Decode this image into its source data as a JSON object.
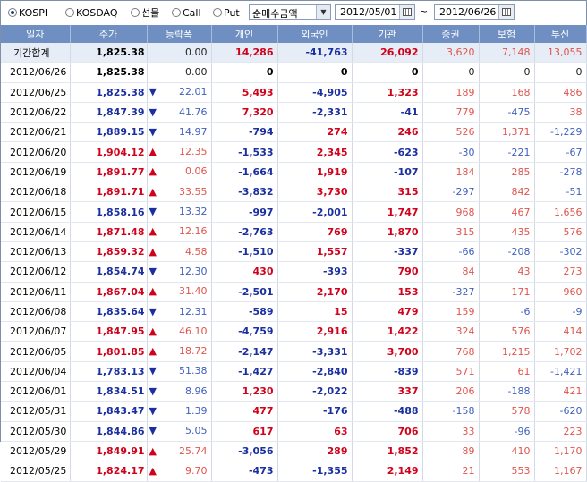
{
  "toolbar": {
    "radios": [
      {
        "label": "KOSPI",
        "checked": true
      },
      {
        "label": "KOSDAQ",
        "checked": false
      },
      {
        "label": "선물",
        "checked": false
      },
      {
        "label": "Call",
        "checked": false
      },
      {
        "label": "Put",
        "checked": false
      }
    ],
    "select_value": "순매수금액",
    "date_from": "2012/05/01",
    "date_sep": "~",
    "date_to": "2012/06/26"
  },
  "colors": {
    "header_bg": "#6f8ec2",
    "up": "#d0021b",
    "down": "#1a2fa0",
    "sum_bg": "#e6edf7"
  },
  "table": {
    "headers": [
      "일자",
      "주가",
      "등락폭",
      "개인",
      "외국인",
      "기관",
      "증권",
      "보험",
      "투신"
    ],
    "rows": [
      {
        "date": "기간합계",
        "price": "1,825.38",
        "dir": "",
        "change": "0.00",
        "ind": "14,286",
        "frn": "-41,763",
        "inst": "26,092",
        "sec": "3,620",
        "ins": "7,148",
        "trust": "13,055",
        "sum": true
      },
      {
        "date": "2012/06/26",
        "price": "1,825.38",
        "dir": "",
        "change": "0.00",
        "ind": "0",
        "frn": "0",
        "inst": "0",
        "sec": "0",
        "ins": "0",
        "trust": "0"
      },
      {
        "date": "2012/06/25",
        "price": "1,825.38",
        "dir": "down",
        "change": "22.01",
        "ind": "5,493",
        "frn": "-4,905",
        "inst": "1,323",
        "sec": "189",
        "ins": "168",
        "trust": "486"
      },
      {
        "date": "2012/06/22",
        "price": "1,847.39",
        "dir": "down",
        "change": "41.76",
        "ind": "7,320",
        "frn": "-2,331",
        "inst": "-41",
        "sec": "779",
        "ins": "-475",
        "trust": "38"
      },
      {
        "date": "2012/06/21",
        "price": "1,889.15",
        "dir": "down",
        "change": "14.97",
        "ind": "-794",
        "frn": "274",
        "inst": "246",
        "sec": "526",
        "ins": "1,371",
        "trust": "-1,229"
      },
      {
        "date": "2012/06/20",
        "price": "1,904.12",
        "dir": "up",
        "change": "12.35",
        "ind": "-1,533",
        "frn": "2,345",
        "inst": "-623",
        "sec": "-30",
        "ins": "-221",
        "trust": "-67"
      },
      {
        "date": "2012/06/19",
        "price": "1,891.77",
        "dir": "up",
        "change": "0.06",
        "ind": "-1,664",
        "frn": "1,919",
        "inst": "-107",
        "sec": "184",
        "ins": "285",
        "trust": "-278"
      },
      {
        "date": "2012/06/18",
        "price": "1,891.71",
        "dir": "up",
        "change": "33.55",
        "ind": "-3,832",
        "frn": "3,730",
        "inst": "315",
        "sec": "-297",
        "ins": "842",
        "trust": "-51"
      },
      {
        "date": "2012/06/15",
        "price": "1,858.16",
        "dir": "down",
        "change": "13.32",
        "ind": "-997",
        "frn": "-2,001",
        "inst": "1,747",
        "sec": "968",
        "ins": "467",
        "trust": "1,656"
      },
      {
        "date": "2012/06/14",
        "price": "1,871.48",
        "dir": "up",
        "change": "12.16",
        "ind": "-2,763",
        "frn": "769",
        "inst": "1,870",
        "sec": "315",
        "ins": "435",
        "trust": "576"
      },
      {
        "date": "2012/06/13",
        "price": "1,859.32",
        "dir": "up",
        "change": "4.58",
        "ind": "-1,510",
        "frn": "1,557",
        "inst": "-337",
        "sec": "-66",
        "ins": "-208",
        "trust": "-302"
      },
      {
        "date": "2012/06/12",
        "price": "1,854.74",
        "dir": "down",
        "change": "12.30",
        "ind": "430",
        "frn": "-393",
        "inst": "790",
        "sec": "84",
        "ins": "43",
        "trust": "273"
      },
      {
        "date": "2012/06/11",
        "price": "1,867.04",
        "dir": "up",
        "change": "31.40",
        "ind": "-2,501",
        "frn": "2,170",
        "inst": "153",
        "sec": "-327",
        "ins": "171",
        "trust": "960"
      },
      {
        "date": "2012/06/08",
        "price": "1,835.64",
        "dir": "down",
        "change": "12.31",
        "ind": "-589",
        "frn": "15",
        "inst": "479",
        "sec": "159",
        "ins": "-6",
        "trust": "-9"
      },
      {
        "date": "2012/06/07",
        "price": "1,847.95",
        "dir": "up",
        "change": "46.10",
        "ind": "-4,759",
        "frn": "2,916",
        "inst": "1,422",
        "sec": "324",
        "ins": "576",
        "trust": "414"
      },
      {
        "date": "2012/06/05",
        "price": "1,801.85",
        "dir": "up",
        "change": "18.72",
        "ind": "-2,147",
        "frn": "-3,331",
        "inst": "3,700",
        "sec": "768",
        "ins": "1,215",
        "trust": "1,702"
      },
      {
        "date": "2012/06/04",
        "price": "1,783.13",
        "dir": "down",
        "change": "51.38",
        "ind": "-1,427",
        "frn": "-2,840",
        "inst": "-839",
        "sec": "571",
        "ins": "61",
        "trust": "-1,421"
      },
      {
        "date": "2012/06/01",
        "price": "1,834.51",
        "dir": "down",
        "change": "8.96",
        "ind": "1,230",
        "frn": "-2,022",
        "inst": "337",
        "sec": "206",
        "ins": "-188",
        "trust": "421"
      },
      {
        "date": "2012/05/31",
        "price": "1,843.47",
        "dir": "down",
        "change": "1.39",
        "ind": "477",
        "frn": "-176",
        "inst": "-488",
        "sec": "-158",
        "ins": "578",
        "trust": "-620"
      },
      {
        "date": "2012/05/30",
        "price": "1,844.86",
        "dir": "down",
        "change": "5.05",
        "ind": "617",
        "frn": "63",
        "inst": "706",
        "sec": "33",
        "ins": "-96",
        "trust": "223"
      },
      {
        "date": "2012/05/29",
        "price": "1,849.91",
        "dir": "up",
        "change": "25.74",
        "ind": "-3,056",
        "frn": "289",
        "inst": "1,852",
        "sec": "89",
        "ins": "410",
        "trust": "1,170"
      },
      {
        "date": "2012/05/25",
        "price": "1,824.17",
        "dir": "up",
        "change": "9.70",
        "ind": "-473",
        "frn": "-1,355",
        "inst": "2,149",
        "sec": "21",
        "ins": "553",
        "trust": "1,167"
      }
    ]
  }
}
